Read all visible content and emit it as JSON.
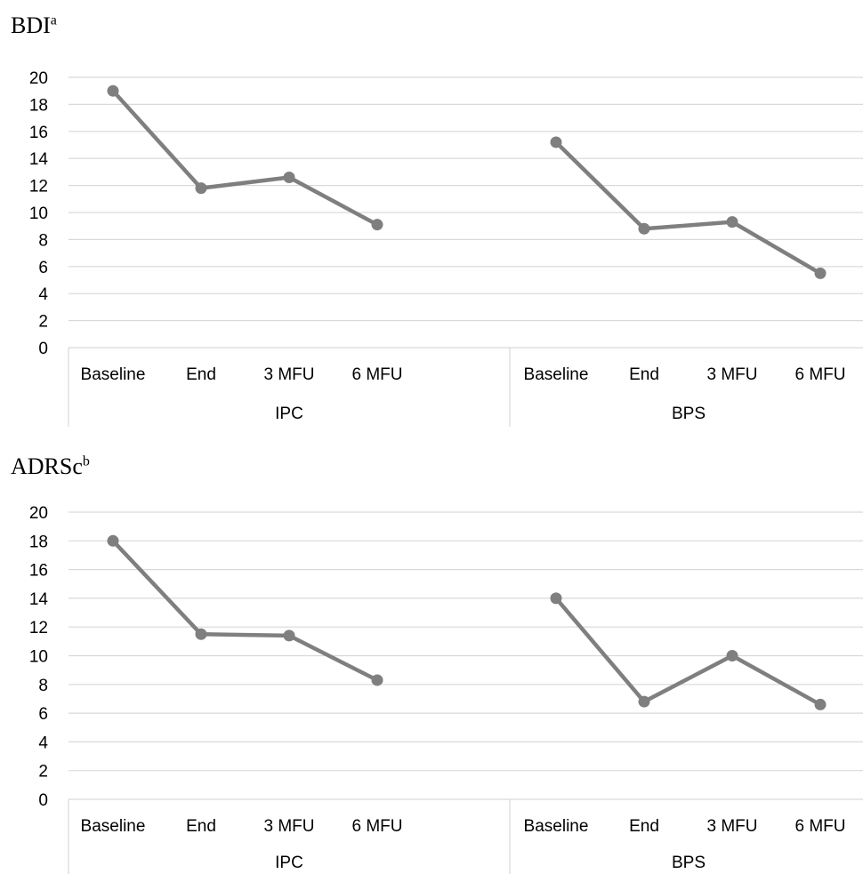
{
  "charts": [
    {
      "title": "BDI",
      "title_sup": "a"
    },
    {
      "title": "ADRSc",
      "title_sup": "b"
    }
  ],
  "chart_data": [
    {
      "type": "line",
      "title": "BDIa",
      "groups": [
        "IPC",
        "BPS"
      ],
      "categories": [
        "Baseline",
        "End",
        "3 MFU",
        "6 MFU"
      ],
      "series": [
        {
          "group": "IPC",
          "values": [
            19.0,
            11.8,
            12.6,
            9.1
          ]
        },
        {
          "group": "BPS",
          "values": [
            15.2,
            8.8,
            9.3,
            5.5
          ]
        }
      ],
      "ylim": [
        0,
        20
      ],
      "yticks": [
        0,
        2,
        4,
        6,
        8,
        10,
        12,
        14,
        16,
        18,
        20
      ],
      "grid": true,
      "line_color": "#7f7f7f"
    },
    {
      "type": "line",
      "title": "ADRScb",
      "groups": [
        "IPC",
        "BPS"
      ],
      "categories": [
        "Baseline",
        "End",
        "3 MFU",
        "6 MFU"
      ],
      "series": [
        {
          "group": "IPC",
          "values": [
            18.0,
            11.5,
            11.4,
            8.3
          ]
        },
        {
          "group": "BPS",
          "values": [
            14.0,
            6.8,
            10.0,
            6.6
          ]
        }
      ],
      "ylim": [
        0,
        20
      ],
      "yticks": [
        0,
        2,
        4,
        6,
        8,
        10,
        12,
        14,
        16,
        18,
        20
      ],
      "grid": true,
      "line_color": "#7f7f7f"
    }
  ]
}
